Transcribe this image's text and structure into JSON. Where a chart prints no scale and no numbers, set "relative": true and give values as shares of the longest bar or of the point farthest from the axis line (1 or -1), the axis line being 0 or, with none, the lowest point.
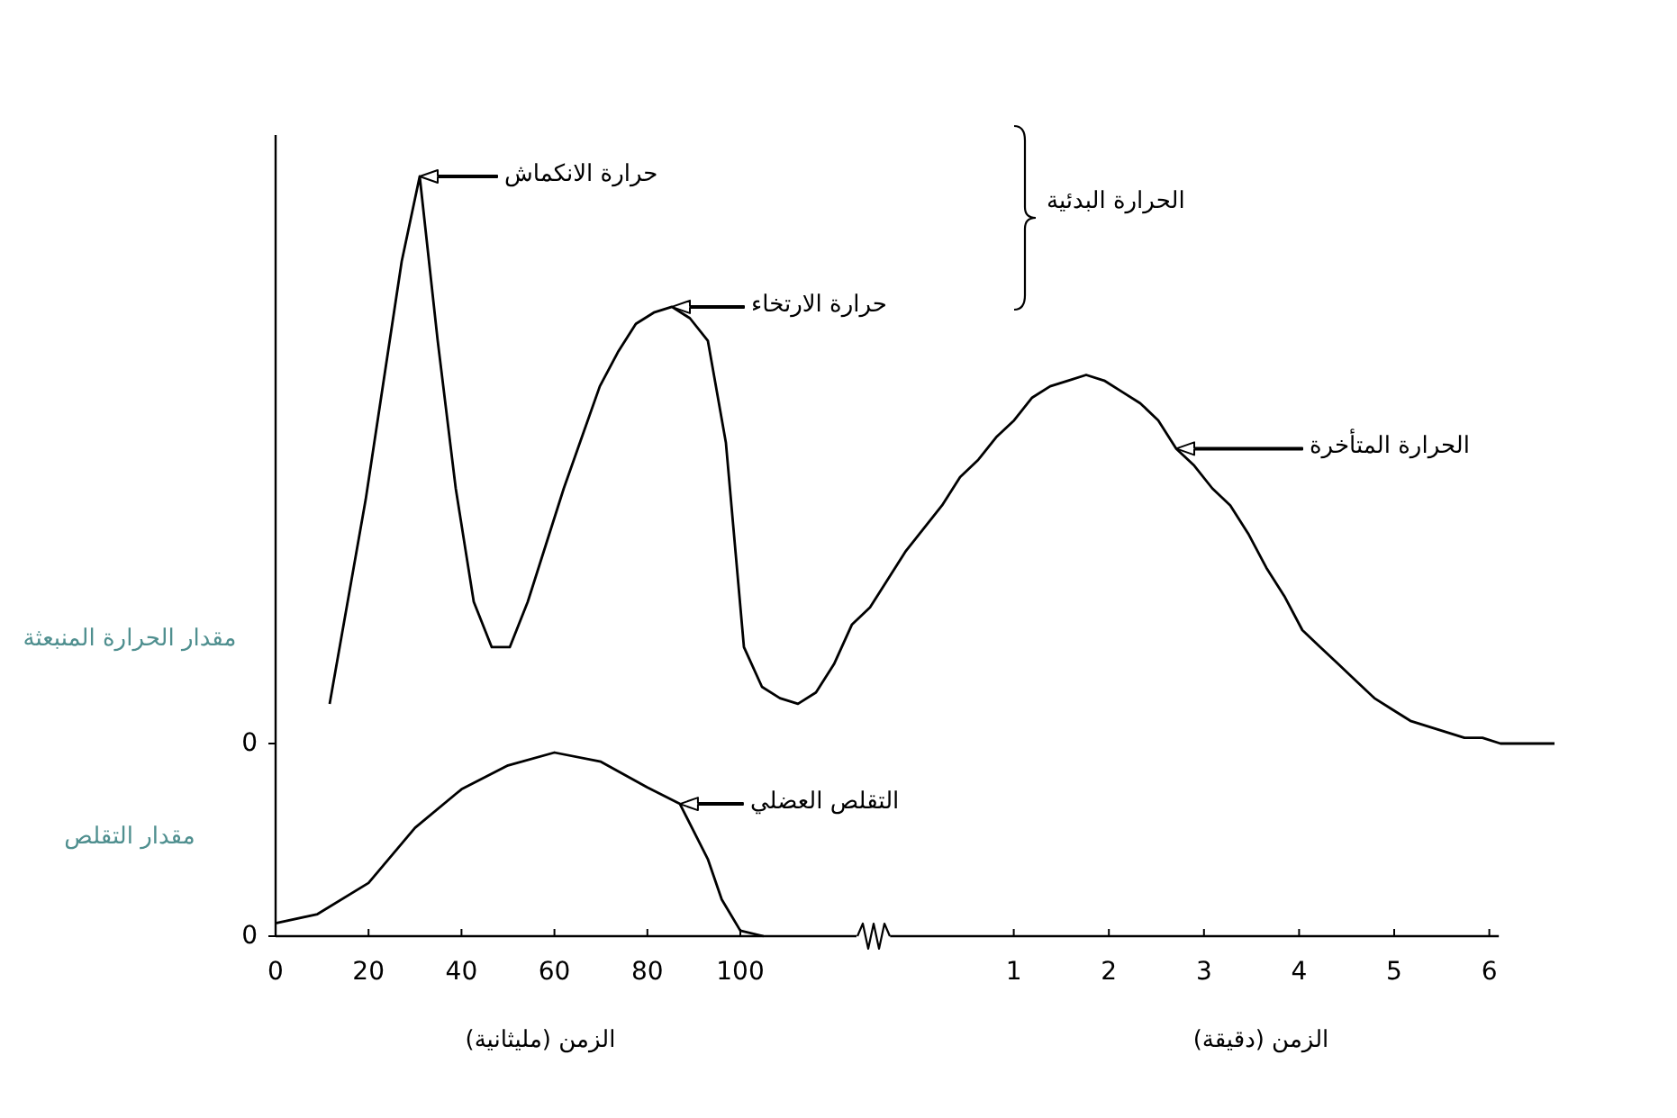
{
  "chart_data": [
    {
      "type": "line",
      "relative": true,
      "ylabel": "مقدار الحرارة المنبعثة",
      "tick_labels": false,
      "categories": [
        null,
        null,
        null,
        null,
        null,
        null,
        null,
        null,
        null,
        null,
        null,
        null,
        null,
        null,
        null,
        null,
        null,
        null,
        null,
        null,
        null,
        null,
        null,
        null,
        null,
        null,
        null,
        null,
        null,
        null,
        null,
        null,
        null,
        null,
        null,
        null,
        null,
        null,
        null,
        null,
        null,
        null,
        null,
        null,
        null,
        null,
        null,
        null,
        null,
        null,
        null,
        null,
        null,
        null,
        null,
        null,
        null,
        null,
        null,
        null,
        null,
        null,
        null,
        null,
        null,
        null,
        null,
        null,
        null
      ],
      "series": [
        {
          "color": "#000000",
          "values": [
            0.07,
            0.25,
            0.43,
            0.64,
            0.85,
            1,
            0.71,
            0.45,
            0.25,
            0.17,
            0.17,
            0.25,
            0.35,
            0.45,
            0.54,
            0.63,
            0.69,
            0.74,
            0.76,
            0.77,
            0.75,
            0.71,
            0.53,
            0.17,
            0.1,
            0.08,
            0.07,
            0.09,
            0.14,
            0.21,
            0.24,
            0.29,
            0.34,
            0.38,
            0.42,
            0.47,
            0.5,
            0.54,
            0.57,
            0.61,
            0.63,
            0.64,
            0.65,
            0.64,
            0.62,
            0.6,
            0.57,
            0.52,
            0.49,
            0.45,
            0.42,
            0.37,
            0.31,
            0.26,
            0.2,
            0.17,
            0.14,
            0.11,
            0.08,
            0.06,
            0.04,
            0.03,
            0.02,
            0.01,
            0.01,
            0,
            0,
            0,
            0
          ]
        }
      ],
      "annotations": [
        "حرارة الانكماش",
        "حرارة الارتخاء",
        "الحرارة المتأخرة",
        "الحرارة البدئية",
        "0"
      ]
    },
    {
      "type": "line",
      "relative": true,
      "ylabel": "مقدار التقلص",
      "xlabel": "الزمن (مليثانية)",
      "xlim": [
        0,
        125
      ],
      "tick_labels": "x",
      "xticks": [
        0,
        20,
        40,
        60,
        80,
        100
      ],
      "series": [
        {
          "color": "#000000",
          "x": [
            0,
            9,
            20,
            30,
            40,
            50,
            60,
            70,
            80,
            87,
            93,
            96,
            100,
            105
          ],
          "values": [
            0.07,
            0.12,
            0.29,
            0.59,
            0.8,
            0.93,
            1,
            0.95,
            0.81,
            0.72,
            0.42,
            0.2,
            0.03,
            0
          ]
        }
      ],
      "x2label": "الزمن (دقيقة)",
      "x2lim": [
        -0.3,
        6.1
      ],
      "x2ticks": [
        1,
        2,
        3,
        4,
        5,
        6
      ],
      "annotations": [
        {
          "text": "التقلص العضلي",
          "x": 87,
          "y": 0.72
        },
        "0"
      ]
    }
  ]
}
